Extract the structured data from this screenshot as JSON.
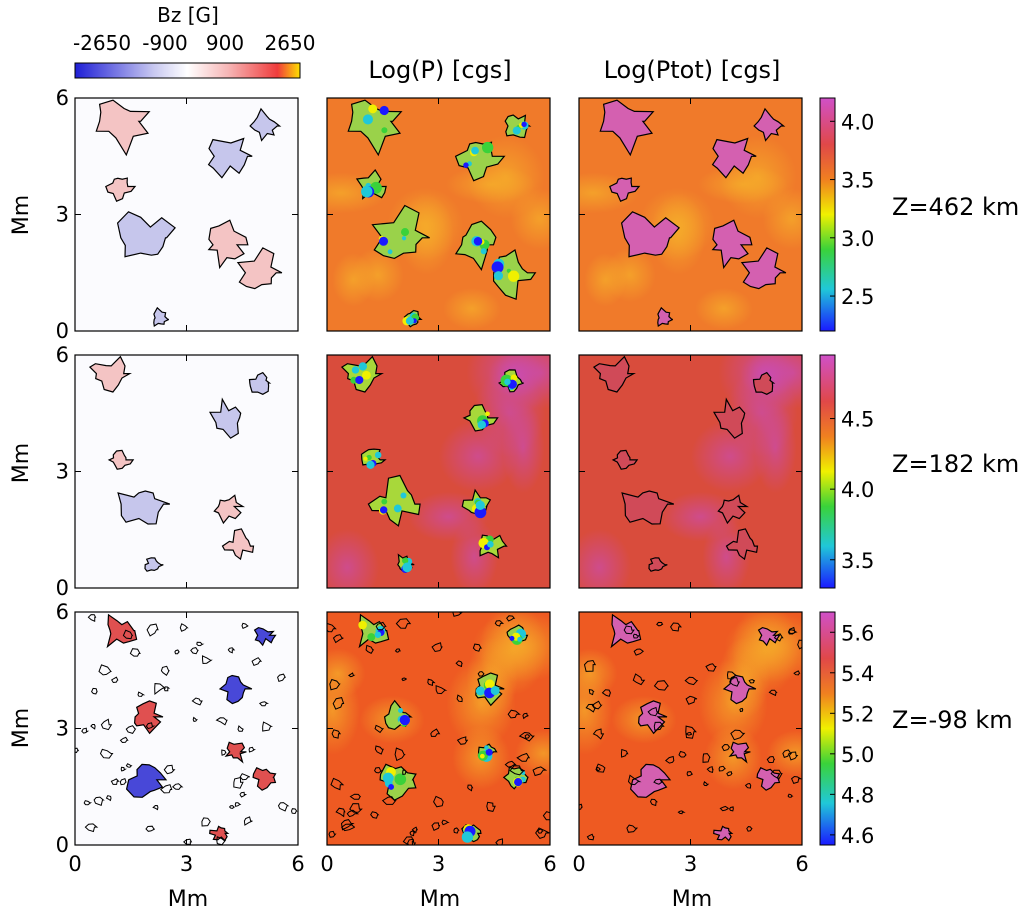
{
  "figure": {
    "bz_colorbar": {
      "title": "Bz [G]",
      "tick_labels": [
        "-2650",
        "-900",
        "900",
        "2650"
      ],
      "tick_values": [
        -2650,
        -900,
        900,
        2650
      ],
      "colors": [
        "#1f1fd6",
        "#ffffff",
        "#f03c3c",
        "#ffe000"
      ]
    },
    "column_titles": [
      "",
      "Log(P) [cgs]",
      "Log(Ptot) [cgs]"
    ],
    "row_labels": [
      "Z=462 km",
      "Z=182 km",
      "Z=-98 km"
    ],
    "y_axis_label": "Mm",
    "x_axis_label": "Mm",
    "axis_ticks": [
      "0",
      "3",
      "6"
    ],
    "row_colorbars": [
      {
        "ticks": [
          "4.0",
          "3.5",
          "3.0",
          "2.5"
        ],
        "tick_values": [
          4.0,
          3.5,
          3.0,
          2.5
        ],
        "range": [
          2.2,
          4.2
        ]
      },
      {
        "ticks": [
          "4.5",
          "4.0",
          "3.5"
        ],
        "tick_values": [
          4.5,
          4.0,
          3.5
        ],
        "range": [
          3.3,
          4.95
        ]
      },
      {
        "ticks": [
          "5.6",
          "5.4",
          "5.2",
          "5.0",
          "4.8",
          "4.6"
        ],
        "tick_values": [
          5.6,
          5.4,
          5.2,
          5.0,
          4.8,
          4.6
        ],
        "range": [
          4.55,
          5.7
        ]
      }
    ],
    "pressure_colors": [
      "#1a1aff",
      "#20c8d8",
      "#3ad23a",
      "#f0f000",
      "#f08020",
      "#e04848",
      "#d050c8"
    ],
    "bg_colors": {
      "bz_panel": "#fbfbfe",
      "log_p_row1": "#f07a2a",
      "log_p_row2": "#d94c3c",
      "log_p_row3": "#ee5a22"
    }
  },
  "chart_data": [
    {
      "type": "heatmap",
      "title": "Bz [G]",
      "panels": [
        {
          "row": "Z=462 km",
          "xlabel": "",
          "ylabel": "Mm",
          "xlim": [
            0,
            6
          ],
          "ylim": [
            0,
            6
          ]
        },
        {
          "row": "Z=182 km",
          "xlabel": "",
          "ylabel": "Mm",
          "xlim": [
            0,
            6
          ],
          "ylim": [
            0,
            6
          ]
        },
        {
          "row": "Z=-98 km",
          "xlabel": "Mm",
          "ylabel": "Mm",
          "xlim": [
            0,
            6
          ],
          "ylim": [
            0,
            6
          ]
        }
      ],
      "color_range": [
        -2650,
        2650
      ]
    },
    {
      "type": "heatmap",
      "title": "Log(P) [cgs]",
      "panels": [
        {
          "row": "Z=462 km",
          "xlim": [
            0,
            6
          ],
          "ylim": [
            0,
            6
          ],
          "color_range": [
            2.2,
            4.2
          ]
        },
        {
          "row": "Z=182 km",
          "xlim": [
            0,
            6
          ],
          "ylim": [
            0,
            6
          ],
          "color_range": [
            3.3,
            4.95
          ]
        },
        {
          "row": "Z=-98 km",
          "xlabel": "Mm",
          "xlim": [
            0,
            6
          ],
          "ylim": [
            0,
            6
          ],
          "color_range": [
            4.55,
            5.7
          ]
        }
      ]
    },
    {
      "type": "heatmap",
      "title": "Log(Ptot) [cgs]",
      "panels": [
        {
          "row": "Z=462 km",
          "xlim": [
            0,
            6
          ],
          "ylim": [
            0,
            6
          ],
          "color_range": [
            2.2,
            4.2
          ]
        },
        {
          "row": "Z=182 km",
          "xlim": [
            0,
            6
          ],
          "ylim": [
            0,
            6
          ],
          "color_range": [
            3.3,
            4.95
          ]
        },
        {
          "row": "Z=-98 km",
          "xlabel": "Mm",
          "xlim": [
            0,
            6
          ],
          "ylim": [
            0,
            6
          ],
          "color_range": [
            4.55,
            5.7
          ]
        }
      ]
    }
  ]
}
